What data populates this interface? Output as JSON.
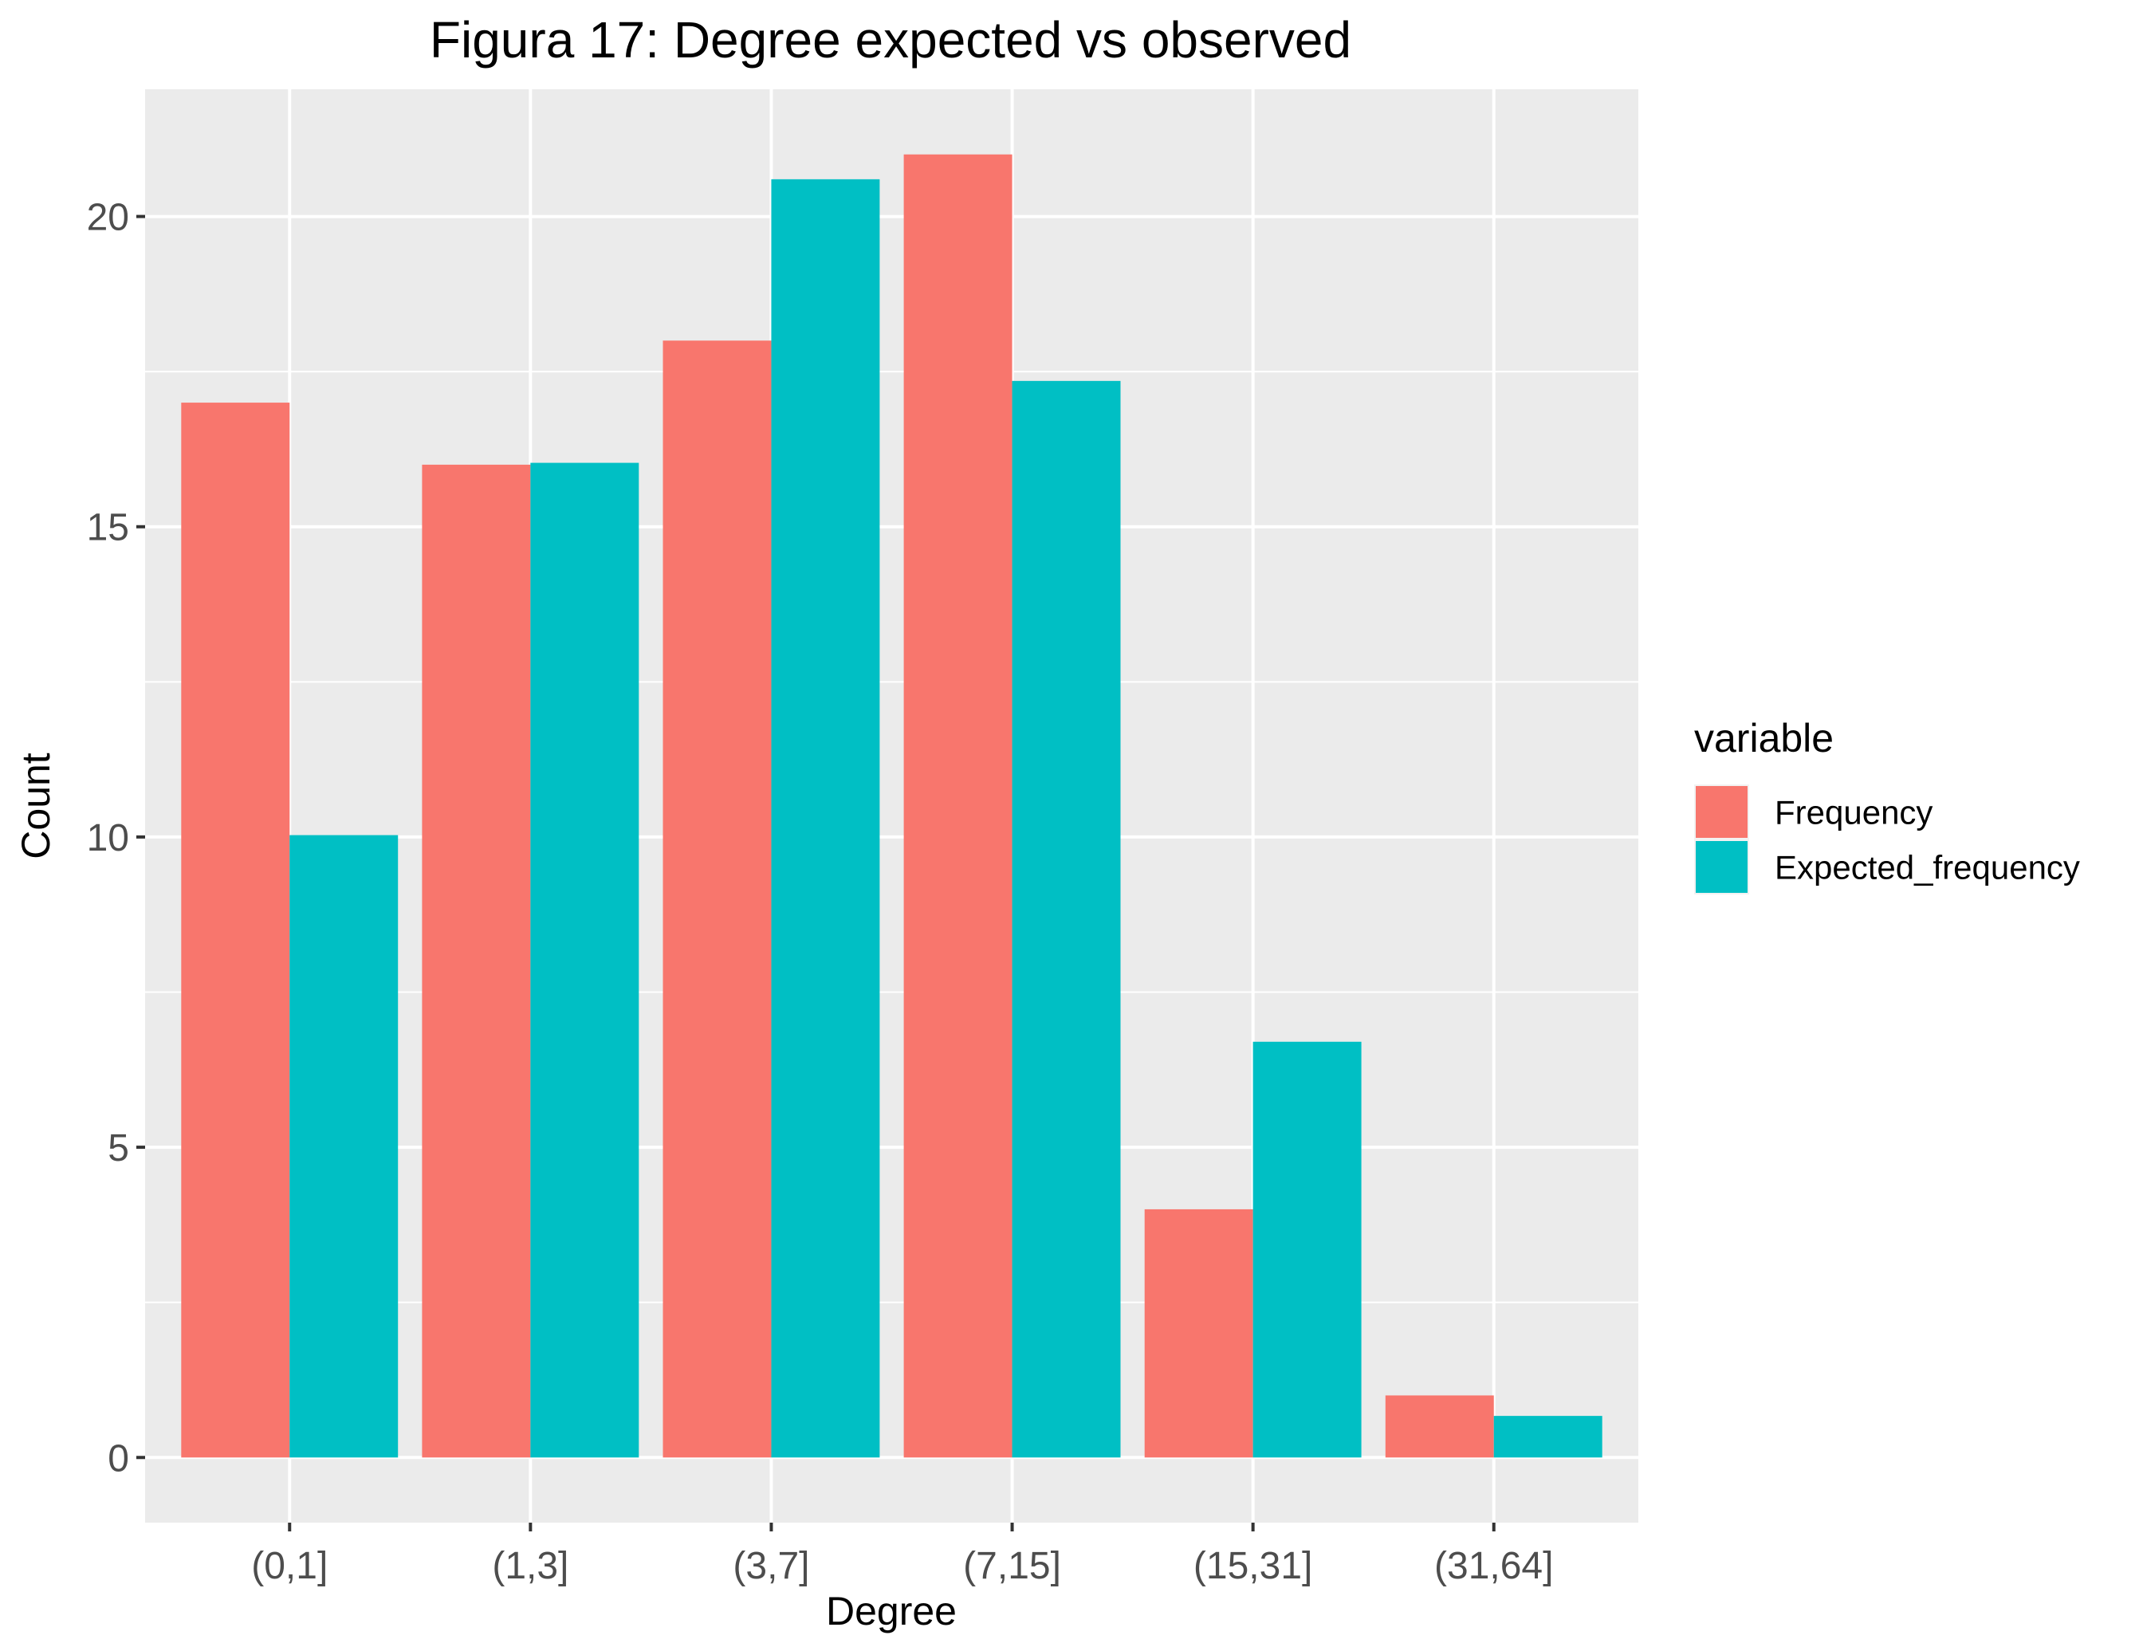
{
  "chart_data": {
    "type": "bar",
    "title": "Figura 17: Degree expected vs observed",
    "xlabel": "Degree",
    "ylabel": "Count",
    "categories": [
      "(0,1]",
      "(1,3]",
      "(3,7]",
      "(7,15]",
      "(15,31]",
      "(31,64]"
    ],
    "series": [
      {
        "name": "Frequency",
        "color": "#F8766D",
        "values": [
          17,
          16,
          18,
          21,
          4,
          1
        ]
      },
      {
        "name": "Expected_frequency",
        "color": "#00BFC4",
        "values": [
          10.03,
          16.03,
          20.6,
          17.35,
          6.7,
          0.67
        ]
      }
    ],
    "ylim": [
      -1.05,
      22.05
    ],
    "yticks": [
      0,
      5,
      10,
      15,
      20
    ],
    "grid": true,
    "panel_background": "#EBEBEB",
    "grid_color": "#FFFFFF",
    "legend": {
      "title": "variable",
      "position": "right"
    }
  }
}
